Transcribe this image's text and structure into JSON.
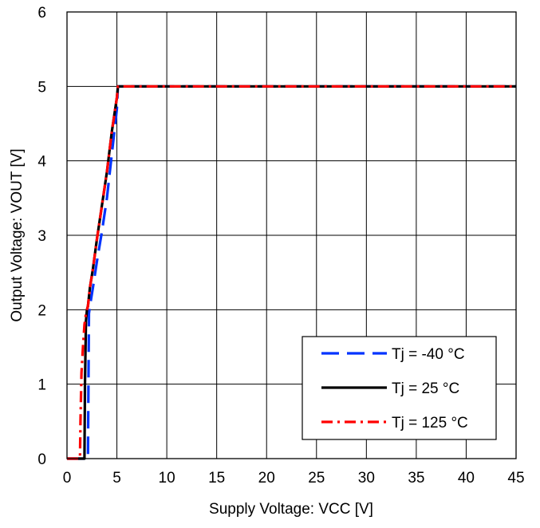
{
  "chart_data": {
    "type": "line",
    "title": "",
    "xlabel": "Supply Voltage: VCC [V]",
    "ylabel": "Output Voltage: VOUT [V]",
    "xlim": [
      0,
      45
    ],
    "ylim": [
      0,
      6
    ],
    "xticks": [
      0,
      5,
      10,
      15,
      20,
      25,
      30,
      35,
      40,
      45
    ],
    "yticks": [
      0,
      1,
      2,
      3,
      4,
      5,
      6
    ],
    "xtick_labels": [
      "0",
      "5",
      "10",
      "15",
      "20",
      "25",
      "30",
      "35",
      "40",
      "45"
    ],
    "ytick_labels": [
      "0",
      "1",
      "2",
      "3",
      "4",
      "5",
      "6"
    ],
    "grid": true,
    "legend_position": "bottom-right",
    "series": [
      {
        "name": "Tj = -40 °C",
        "color": "#0033ff",
        "dash": "long-dash",
        "x": [
          0,
          2.1,
          2.15,
          2.2,
          2.3,
          2.6,
          3.0,
          3.5,
          4.0,
          4.5,
          5.0,
          5.1,
          45
        ],
        "y": [
          0,
          0,
          1.0,
          1.95,
          2.05,
          2.3,
          2.65,
          3.05,
          3.5,
          4.1,
          4.7,
          5.0,
          5.0
        ]
      },
      {
        "name": "Tj = 25 °C",
        "color": "#000000",
        "dash": "solid",
        "x": [
          0,
          1.75,
          1.8,
          1.9,
          2.0,
          2.1,
          2.3,
          2.6,
          3.0,
          3.5,
          4.0,
          4.5,
          5.0,
          5.1,
          45
        ],
        "y": [
          0,
          0,
          1.0,
          1.85,
          2.0,
          2.05,
          2.3,
          2.55,
          2.95,
          3.4,
          3.85,
          4.4,
          4.85,
          5.0,
          5.0
        ]
      },
      {
        "name": "Tj = 125 °C",
        "color": "#ff0000",
        "dash": "dash-dot",
        "x": [
          0,
          1.3,
          1.35,
          1.45,
          1.6,
          1.75,
          1.9,
          2.1,
          2.3,
          2.6,
          3.0,
          3.5,
          4.0,
          4.5,
          5.0,
          5.1,
          45
        ],
        "y": [
          0,
          0,
          0.5,
          1.15,
          1.5,
          1.8,
          1.95,
          2.05,
          2.3,
          2.55,
          2.95,
          3.4,
          3.85,
          4.4,
          4.85,
          5.0,
          5.0
        ]
      }
    ]
  }
}
